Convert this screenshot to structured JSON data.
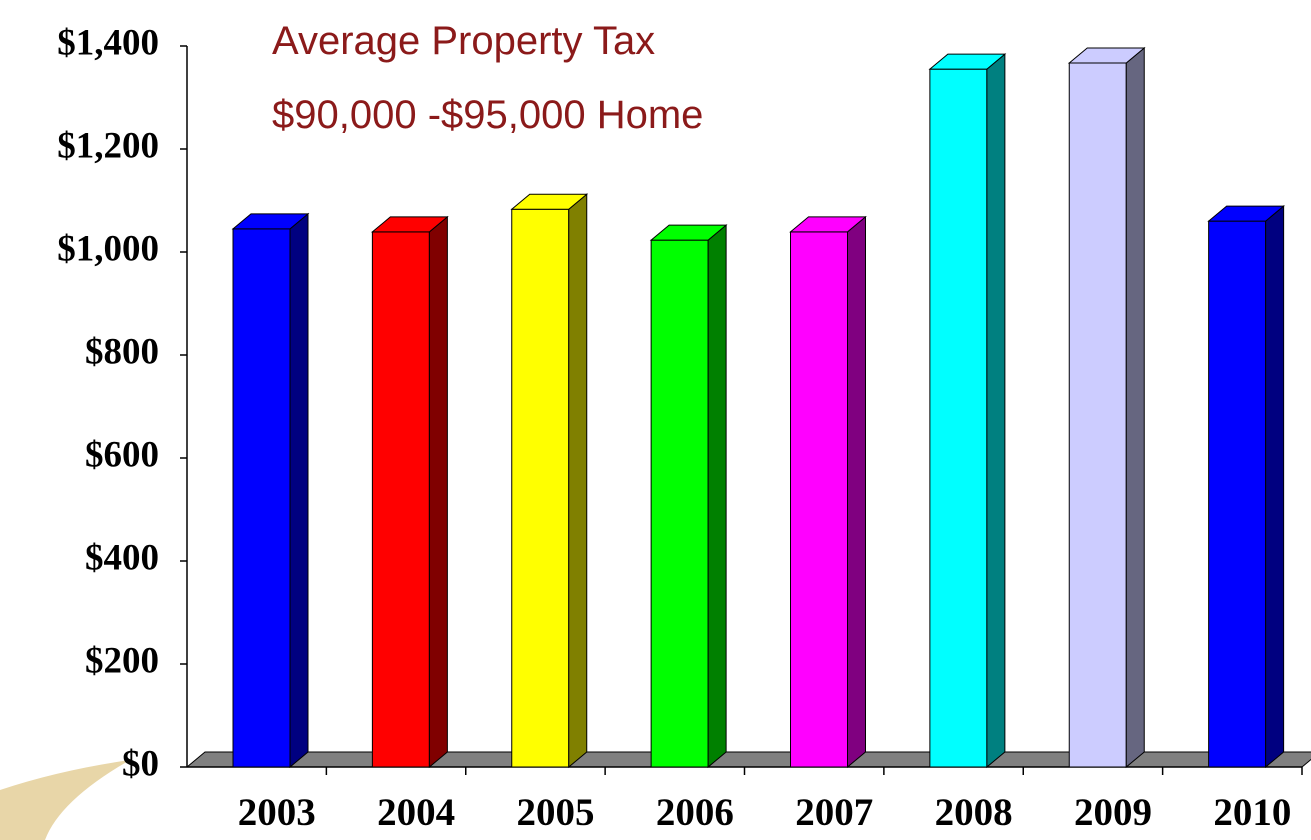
{
  "chart_data": {
    "type": "bar3d",
    "title": "Average Property Tax",
    "subtitle": "$90,000 -$95,000 Home",
    "categories": [
      "2003",
      "2004",
      "2005",
      "2006",
      "2007",
      "2008",
      "2009",
      "2010"
    ],
    "values": [
      1045,
      1039,
      1083,
      1023,
      1039,
      1355,
      1367,
      1060
    ],
    "colors": [
      "#0000ff",
      "#ff0000",
      "#ffff00",
      "#00ff00",
      "#ff00ff",
      "#00ffff",
      "#ccccff",
      "#0000ff"
    ],
    "ylim": [
      0,
      1400
    ],
    "yticks": [
      {
        "value": 0,
        "label": "$0"
      },
      {
        "value": 200,
        "label": "$200"
      },
      {
        "value": 400,
        "label": "$400"
      },
      {
        "value": 600,
        "label": "$600"
      },
      {
        "value": 800,
        "label": "$800"
      },
      {
        "value": 1000,
        "label": "$1,000"
      },
      {
        "value": 1200,
        "label": "$1,200"
      },
      {
        "value": 1400,
        "label": "$1,400"
      }
    ],
    "grid": false
  }
}
